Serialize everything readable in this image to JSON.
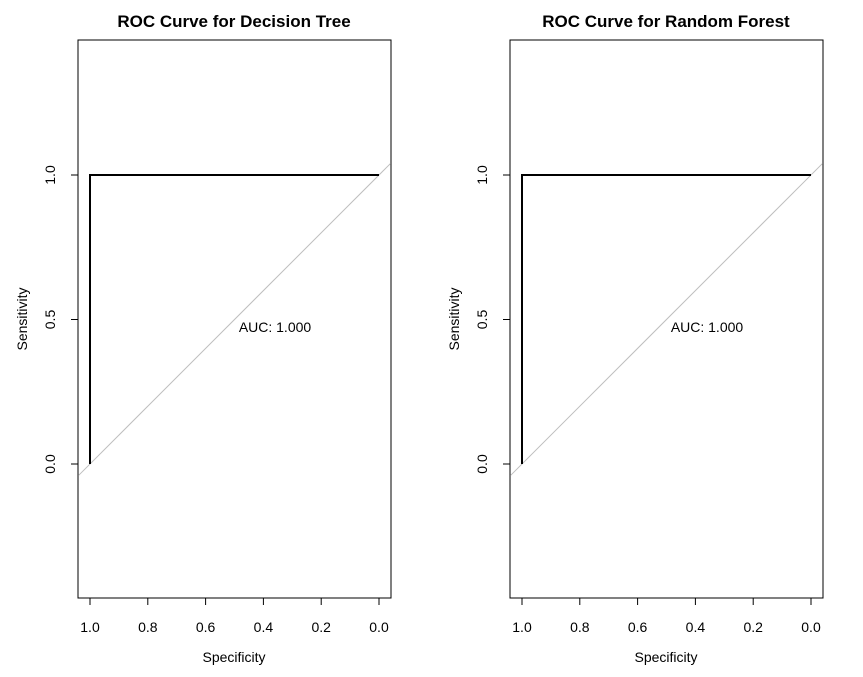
{
  "chart_data": [
    {
      "type": "line",
      "title": "ROC Curve for Decision Tree",
      "xlabel": "Specificity",
      "ylabel": "Sensitivity",
      "x_reversed": true,
      "xticks": [
        "1.0",
        "0.8",
        "0.6",
        "0.4",
        "0.2",
        "0.0"
      ],
      "yticks": [
        "0.0",
        "0.5",
        "1.0"
      ],
      "series": [
        {
          "specificity": [
            1.0,
            1.0,
            0.0
          ],
          "sensitivity": [
            0.0,
            1.0,
            1.0
          ]
        }
      ],
      "reference_line": "identity",
      "annotation": "AUC: 1.000",
      "colors": {
        "curve": "#000000",
        "reference": "#bebebe"
      }
    },
    {
      "type": "line",
      "title": "ROC Curve for Random Forest",
      "xlabel": "Specificity",
      "ylabel": "Sensitivity",
      "x_reversed": true,
      "xticks": [
        "1.0",
        "0.8",
        "0.6",
        "0.4",
        "0.2",
        "0.0"
      ],
      "yticks": [
        "0.0",
        "0.5",
        "1.0"
      ],
      "series": [
        {
          "specificity": [
            1.0,
            1.0,
            0.0
          ],
          "sensitivity": [
            0.0,
            1.0,
            1.0
          ]
        }
      ],
      "reference_line": "identity",
      "annotation": "AUC: 1.000",
      "colors": {
        "curve": "#000000",
        "reference": "#bebebe"
      }
    }
  ]
}
